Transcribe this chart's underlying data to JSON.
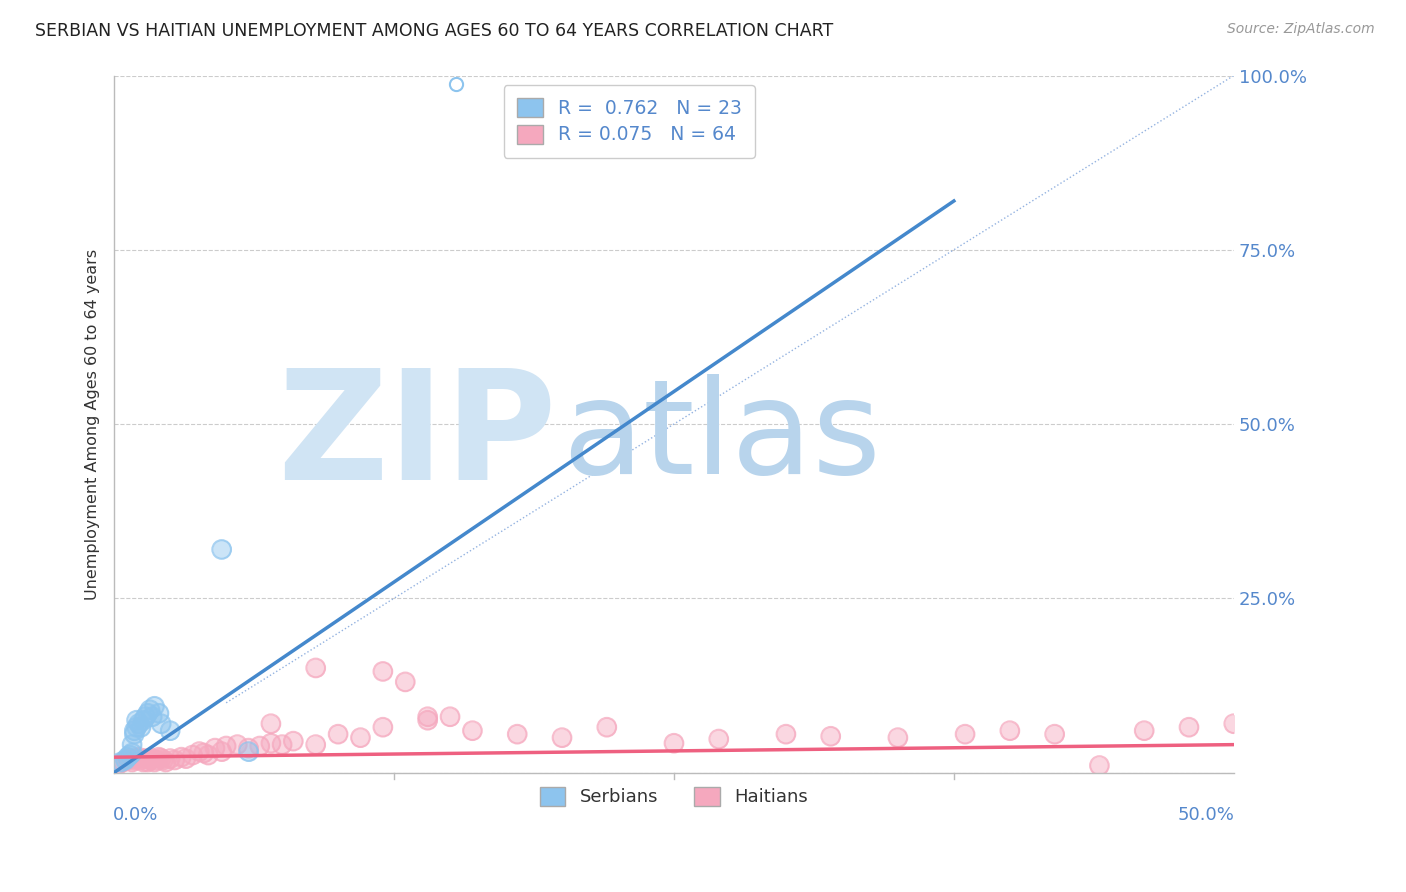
{
  "title": "SERBIAN VS HAITIAN UNEMPLOYMENT AMONG AGES 60 TO 64 YEARS CORRELATION CHART",
  "source": "Source: ZipAtlas.com",
  "ylabel": "Unemployment Among Ages 60 to 64 years",
  "xlim": [
    0.0,
    0.5
  ],
  "ylim": [
    0.0,
    1.0
  ],
  "serbian_R": 0.762,
  "serbian_N": 23,
  "haitian_R": 0.075,
  "haitian_N": 64,
  "serbian_color": "#8DC4EE",
  "haitian_color": "#F5A8BE",
  "serbian_line_color": "#4488CC",
  "haitian_line_color": "#EE6080",
  "diag_line_color": "#88AADD",
  "background_color": "#FFFFFF",
  "grid_color": "#CCCCCC",
  "title_color": "#222222",
  "blue_text_color": "#5588CC",
  "watermark_color_zip": "#D0E4F4",
  "watermark_color_atlas": "#B8D4EC",
  "ytick_positions": [
    0.0,
    0.25,
    0.5,
    0.75,
    1.0
  ],
  "ytick_labels": [
    "",
    "25.0%",
    "50.0%",
    "75.0%",
    "100.0%"
  ],
  "serbian_line_x": [
    0.0,
    0.375
  ],
  "serbian_line_y": [
    0.0,
    0.82
  ],
  "haitian_line_x": [
    0.0,
    0.5
  ],
  "haitian_line_y": [
    0.022,
    0.04
  ],
  "diag_line_x": [
    0.05,
    0.5
  ],
  "diag_line_y": [
    0.1,
    1.0
  ],
  "serbian_scatter_x": [
    0.003,
    0.005,
    0.006,
    0.007,
    0.008,
    0.008,
    0.009,
    0.009,
    0.01,
    0.01,
    0.011,
    0.012,
    0.013,
    0.014,
    0.015,
    0.016,
    0.017,
    0.018,
    0.02,
    0.021,
    0.025,
    0.048,
    0.06
  ],
  "serbian_scatter_y": [
    0.015,
    0.018,
    0.022,
    0.025,
    0.028,
    0.04,
    0.055,
    0.06,
    0.065,
    0.075,
    0.07,
    0.065,
    0.075,
    0.08,
    0.085,
    0.09,
    0.08,
    0.095,
    0.085,
    0.07,
    0.06,
    0.32,
    0.03
  ],
  "haitian_scatter_x": [
    0.002,
    0.004,
    0.006,
    0.007,
    0.008,
    0.009,
    0.01,
    0.011,
    0.012,
    0.013,
    0.014,
    0.015,
    0.016,
    0.017,
    0.018,
    0.019,
    0.02,
    0.021,
    0.022,
    0.023,
    0.025,
    0.027,
    0.03,
    0.032,
    0.035,
    0.038,
    0.04,
    0.042,
    0.045,
    0.048,
    0.05,
    0.055,
    0.06,
    0.065,
    0.07,
    0.075,
    0.08,
    0.09,
    0.1,
    0.11,
    0.12,
    0.13,
    0.14,
    0.15,
    0.16,
    0.18,
    0.2,
    0.22,
    0.25,
    0.27,
    0.3,
    0.32,
    0.35,
    0.38,
    0.4,
    0.42,
    0.44,
    0.46,
    0.48,
    0.5,
    0.12,
    0.14,
    0.09,
    0.07
  ],
  "haitian_scatter_y": [
    0.012,
    0.015,
    0.018,
    0.02,
    0.015,
    0.018,
    0.02,
    0.022,
    0.018,
    0.015,
    0.02,
    0.015,
    0.018,
    0.02,
    0.015,
    0.018,
    0.022,
    0.02,
    0.018,
    0.015,
    0.02,
    0.018,
    0.022,
    0.02,
    0.025,
    0.03,
    0.028,
    0.025,
    0.035,
    0.03,
    0.038,
    0.04,
    0.035,
    0.038,
    0.042,
    0.04,
    0.045,
    0.04,
    0.055,
    0.05,
    0.065,
    0.13,
    0.075,
    0.08,
    0.06,
    0.055,
    0.05,
    0.065,
    0.042,
    0.048,
    0.055,
    0.052,
    0.05,
    0.055,
    0.06,
    0.055,
    0.01,
    0.06,
    0.065,
    0.07,
    0.145,
    0.08,
    0.15,
    0.07
  ]
}
